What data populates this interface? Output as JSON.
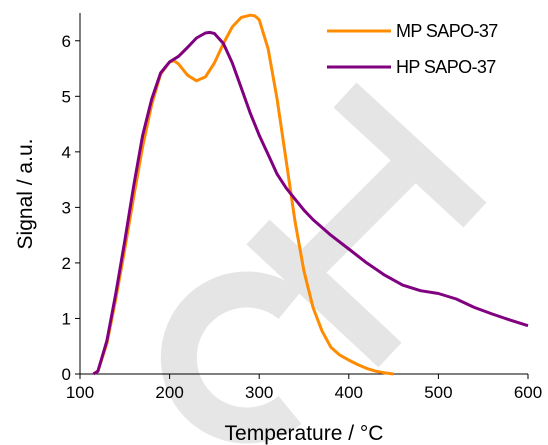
{
  "chart_data": {
    "type": "line",
    "xlabel": "Temperature / °C",
    "ylabel": "Signal / a.u.",
    "xlim": [
      100,
      600
    ],
    "ylim": [
      0,
      6.5
    ],
    "x_ticks": [
      100,
      200,
      300,
      400,
      500,
      600
    ],
    "y_ticks": [
      0,
      1,
      2,
      3,
      4,
      5,
      6
    ],
    "grid": false,
    "legend_position": "top-right",
    "watermark_letters": "CH",
    "series": [
      {
        "name": "MP SAPO-37",
        "color": "#ff8c00",
        "x": [
          115,
          120,
          130,
          140,
          150,
          160,
          170,
          180,
          190,
          200,
          205,
          210,
          220,
          230,
          240,
          250,
          260,
          270,
          280,
          290,
          295,
          300,
          310,
          320,
          330,
          340,
          350,
          360,
          370,
          380,
          390,
          400,
          410,
          420,
          430,
          440,
          450
        ],
        "y": [
          0.0,
          0.05,
          0.55,
          1.35,
          2.25,
          3.2,
          4.1,
          4.85,
          5.4,
          5.62,
          5.64,
          5.58,
          5.38,
          5.28,
          5.35,
          5.6,
          5.95,
          6.25,
          6.42,
          6.46,
          6.45,
          6.38,
          5.85,
          4.95,
          3.85,
          2.75,
          1.85,
          1.2,
          0.78,
          0.48,
          0.34,
          0.25,
          0.17,
          0.1,
          0.05,
          0.02,
          0.0
        ]
      },
      {
        "name": "HP SAPO-37",
        "color": "#800080",
        "x": [
          115,
          120,
          130,
          140,
          150,
          160,
          170,
          180,
          190,
          200,
          210,
          220,
          230,
          240,
          245,
          250,
          260,
          270,
          280,
          290,
          300,
          310,
          320,
          330,
          340,
          350,
          360,
          380,
          400,
          420,
          440,
          460,
          480,
          500,
          520,
          540,
          560,
          580,
          600
        ],
        "y": [
          0.0,
          0.05,
          0.6,
          1.45,
          2.4,
          3.4,
          4.3,
          4.95,
          5.42,
          5.62,
          5.72,
          5.88,
          6.05,
          6.14,
          6.15,
          6.13,
          5.95,
          5.6,
          5.15,
          4.7,
          4.3,
          3.95,
          3.6,
          3.35,
          3.15,
          2.95,
          2.78,
          2.5,
          2.25,
          2.0,
          1.78,
          1.6,
          1.5,
          1.45,
          1.35,
          1.2,
          1.08,
          0.97,
          0.87
        ]
      }
    ]
  }
}
